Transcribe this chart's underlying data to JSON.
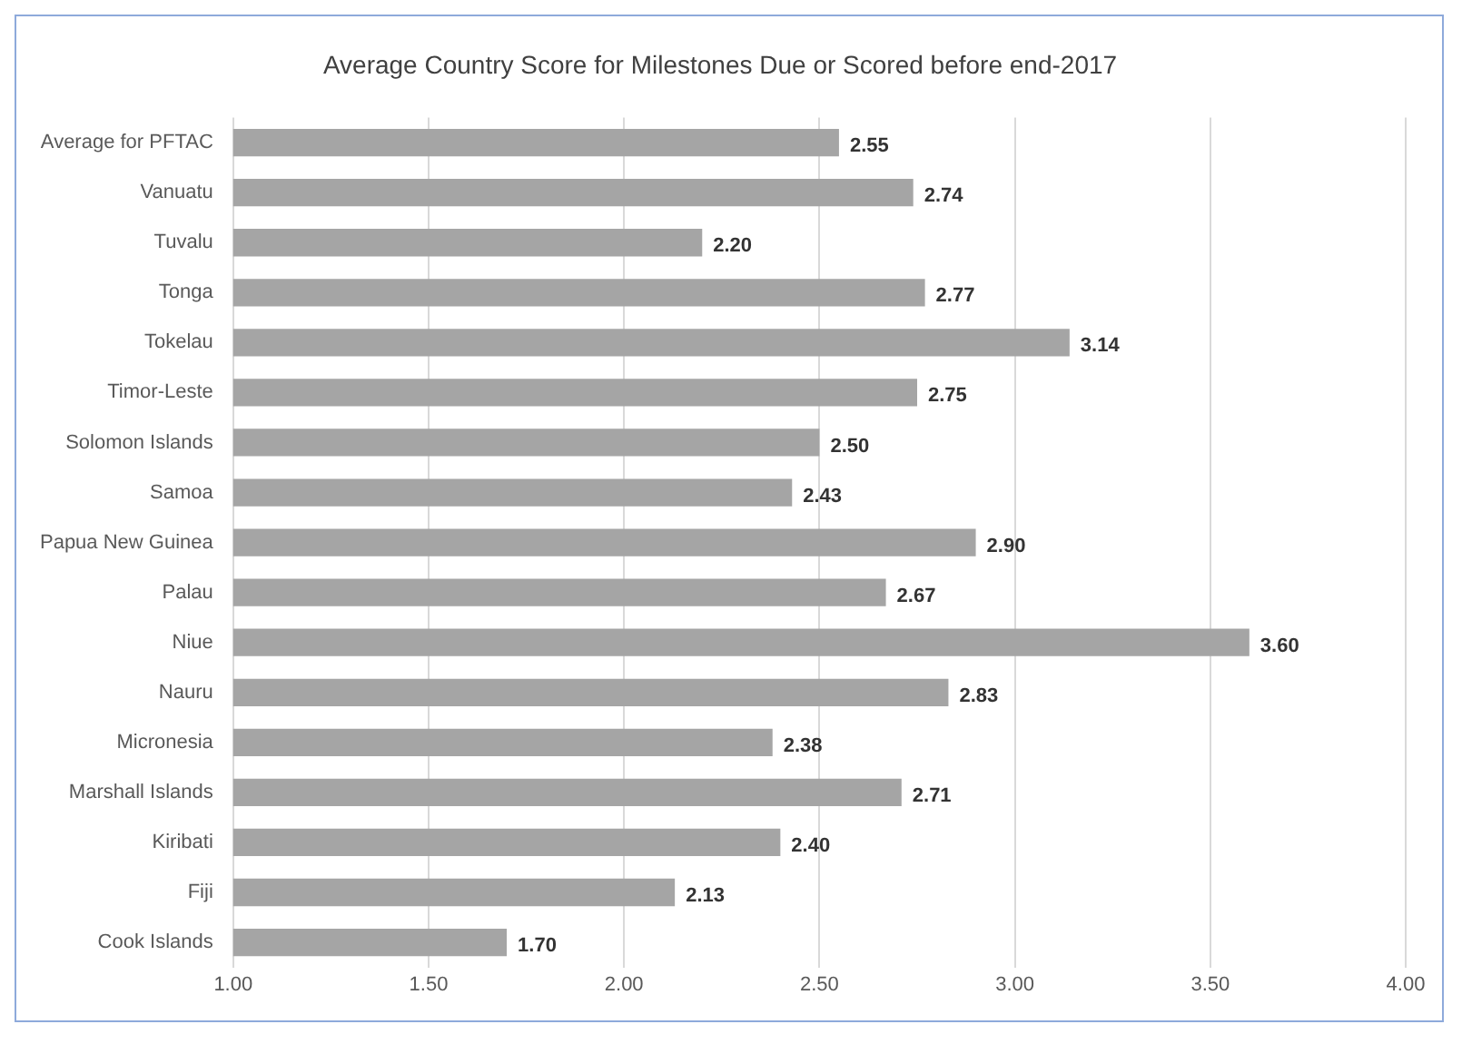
{
  "chart_data": {
    "type": "bar",
    "orientation": "horizontal",
    "title": "Average Country Score for Milestones Due or Scored before end-2017",
    "categories": [
      "Average for PFTAC",
      "Vanuatu",
      "Tuvalu",
      "Tonga",
      "Tokelau",
      "Timor-Leste",
      "Solomon Islands",
      "Samoa",
      "Papua New Guinea",
      "Palau",
      "Niue",
      "Nauru",
      "Micronesia",
      "Marshall Islands",
      "Kiribati",
      "Fiji",
      "Cook Islands"
    ],
    "values": [
      2.55,
      2.74,
      2.2,
      2.77,
      3.14,
      2.75,
      2.5,
      2.43,
      2.9,
      2.67,
      3.6,
      2.83,
      2.38,
      2.71,
      2.4,
      2.13,
      1.7
    ],
    "value_labels": [
      "2.55",
      "2.74",
      "2.20",
      "2.77",
      "3.14",
      "2.75",
      "2.50",
      "2.43",
      "2.90",
      "2.67",
      "3.60",
      "2.83",
      "2.38",
      "2.71",
      "2.40",
      "2.13",
      "1.70"
    ],
    "color": "#a5a5a5",
    "xlim": [
      1,
      4
    ],
    "xticks": [
      {
        "value": 1,
        "label": "1.00"
      },
      {
        "value": 1.5,
        "label": "1.50"
      },
      {
        "value": 2,
        "label": "2.00"
      },
      {
        "value": 2.5,
        "label": "2.50"
      },
      {
        "value": 3,
        "label": "3.00"
      },
      {
        "value": 3.5,
        "label": "3.50"
      },
      {
        "value": 4,
        "label": "4.00"
      }
    ],
    "grid": "x",
    "legend": false
  }
}
